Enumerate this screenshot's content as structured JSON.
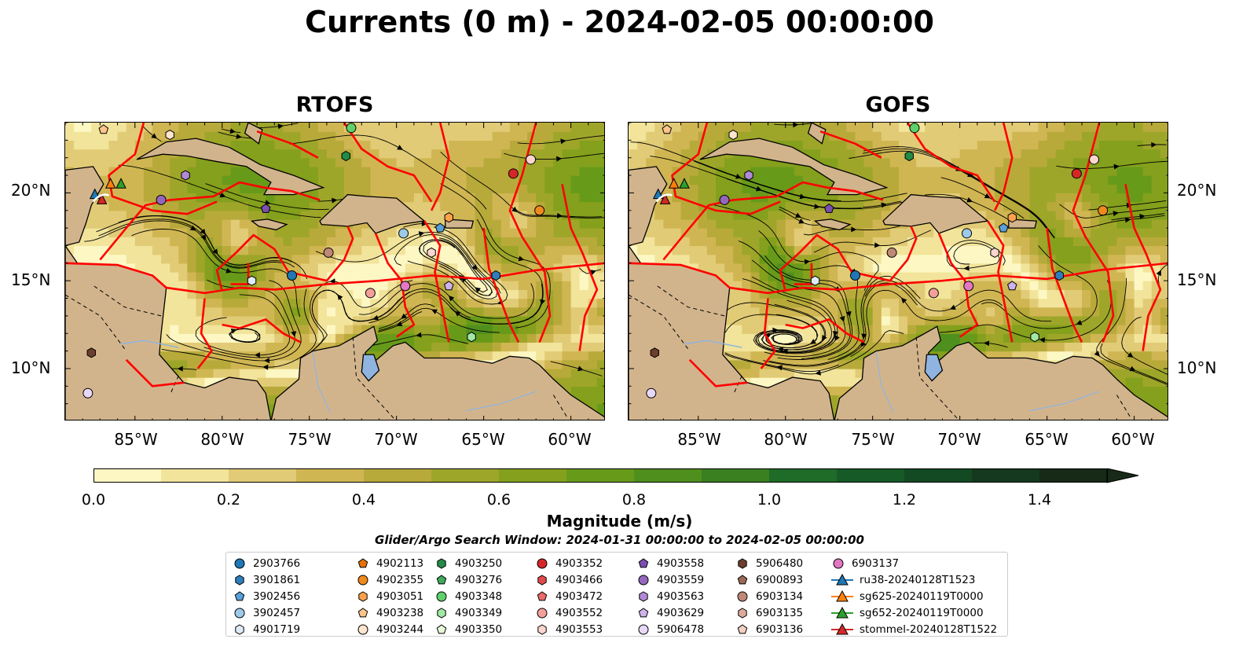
{
  "title": "Currents (0 m) - 2024-02-05 00:00:00",
  "panels": [
    {
      "title": "RTOFS"
    },
    {
      "title": "GOFS"
    }
  ],
  "axes": {
    "lat_ticks": [
      "20°N",
      "15°N",
      "10°N"
    ],
    "lon_ticks": [
      "85°W",
      "80°W",
      "75°W",
      "70°W",
      "65°W",
      "60°W"
    ]
  },
  "chart_data": {
    "type": "heatmap",
    "variable": "Currents (0 m)",
    "datetime": "2024-02-05 00:00:00",
    "models": [
      "RTOFS",
      "GOFS"
    ],
    "extent": {
      "lon": [
        -89,
        -58
      ],
      "lat": [
        7,
        24
      ]
    },
    "colorbar": {
      "label": "Magnitude (m/s)",
      "ticks": [
        "0.0",
        "0.2",
        "0.4",
        "0.6",
        "0.8",
        "1.0",
        "1.2",
        "1.4"
      ],
      "levels": [
        0.0,
        0.1,
        0.2,
        0.3,
        0.4,
        0.5,
        0.6,
        0.7,
        0.8,
        0.9,
        1.0,
        1.1,
        1.2,
        1.3,
        1.4,
        1.5
      ],
      "colors": [
        "#fdf7c4",
        "#f2e49a",
        "#e1cb76",
        "#d0b652",
        "#b8aa3a",
        "#9ea62a",
        "#84a01c",
        "#689a1a",
        "#4f8f1e",
        "#3a7f20",
        "#1f6b28",
        "#165a28",
        "#134a24",
        "#15391e",
        "#172a18"
      ],
      "extend": "max"
    },
    "search_window": "Glider/Argo Search Window: 2024-01-31 00:00:00 to 2024-02-05 00:00:00"
  },
  "legend": {
    "columns": [
      [
        {
          "label": "2903766",
          "marker": "circle",
          "color": "#1f77b4"
        },
        {
          "label": "3901861",
          "marker": "hexagon",
          "color": "#2f7ebc"
        },
        {
          "label": "3902456",
          "marker": "pentagon",
          "color": "#5aa0d8"
        },
        {
          "label": "3902457",
          "marker": "circle",
          "color": "#9ecae9"
        },
        {
          "label": "4901719",
          "marker": "hexagon",
          "color": "#deebf7"
        }
      ],
      [
        {
          "label": "4902113",
          "marker": "pentagon",
          "color": "#e6700a"
        },
        {
          "label": "4902355",
          "marker": "circle",
          "color": "#f08a1d"
        },
        {
          "label": "4903051",
          "marker": "hexagon",
          "color": "#fda14a"
        },
        {
          "label": "4903238",
          "marker": "pentagon",
          "color": "#fdc48c"
        },
        {
          "label": "4903244",
          "marker": "circle",
          "color": "#fee6ce"
        }
      ],
      [
        {
          "label": "4903250",
          "marker": "hexagon",
          "color": "#238b45"
        },
        {
          "label": "4903276",
          "marker": "pentagon",
          "color": "#41ab5d"
        },
        {
          "label": "4903348",
          "marker": "circle",
          "color": "#5ed16a"
        },
        {
          "label": "4903349",
          "marker": "hexagon",
          "color": "#a1e8a5"
        },
        {
          "label": "4903350",
          "marker": "pentagon",
          "color": "#e5f8d8"
        }
      ],
      [
        {
          "label": "4903352",
          "marker": "circle",
          "color": "#d62728"
        },
        {
          "label": "4903466",
          "marker": "hexagon",
          "color": "#e04b4b"
        },
        {
          "label": "4903472",
          "marker": "pentagon",
          "color": "#ec6b6b"
        },
        {
          "label": "4903552",
          "marker": "circle",
          "color": "#f4a09a"
        },
        {
          "label": "4903553",
          "marker": "hexagon",
          "color": "#fcd5cf"
        }
      ],
      [
        {
          "label": "4903558",
          "marker": "pentagon",
          "color": "#7b4fb0"
        },
        {
          "label": "4903559",
          "marker": "circle",
          "color": "#9467bd"
        },
        {
          "label": "4903563",
          "marker": "hexagon",
          "color": "#b08ad6"
        },
        {
          "label": "4903629",
          "marker": "pentagon",
          "color": "#cdb3ea"
        },
        {
          "label": "5906478",
          "marker": "circle",
          "color": "#e8d8f7"
        }
      ],
      [
        {
          "label": "5906480",
          "marker": "hexagon",
          "color": "#6b3e2e"
        },
        {
          "label": "6900893",
          "marker": "pentagon",
          "color": "#9c6a58"
        },
        {
          "label": "6903134",
          "marker": "circle",
          "color": "#c08877"
        },
        {
          "label": "6903135",
          "marker": "hexagon",
          "color": "#dcaa9c"
        },
        {
          "label": "6903136",
          "marker": "pentagon",
          "color": "#f2d0c2"
        }
      ],
      [
        {
          "label": "6903137",
          "marker": "circle",
          "color": "#e377c2"
        },
        {
          "label": "ru38-20240128T1523",
          "marker": "triangle-line",
          "color": "#1f77b4"
        },
        {
          "label": "sg625-20240119T0000",
          "marker": "triangle-line",
          "color": "#ff7f0e"
        },
        {
          "label": "sg652-20240119T0000",
          "marker": "triangle-line",
          "color": "#2ca02c"
        },
        {
          "label": "stommel-20240128T1522",
          "marker": "triangle-line",
          "color": "#d62728"
        }
      ]
    ]
  },
  "land_color": "#d2b48c",
  "boundary_color": "#ff0000"
}
